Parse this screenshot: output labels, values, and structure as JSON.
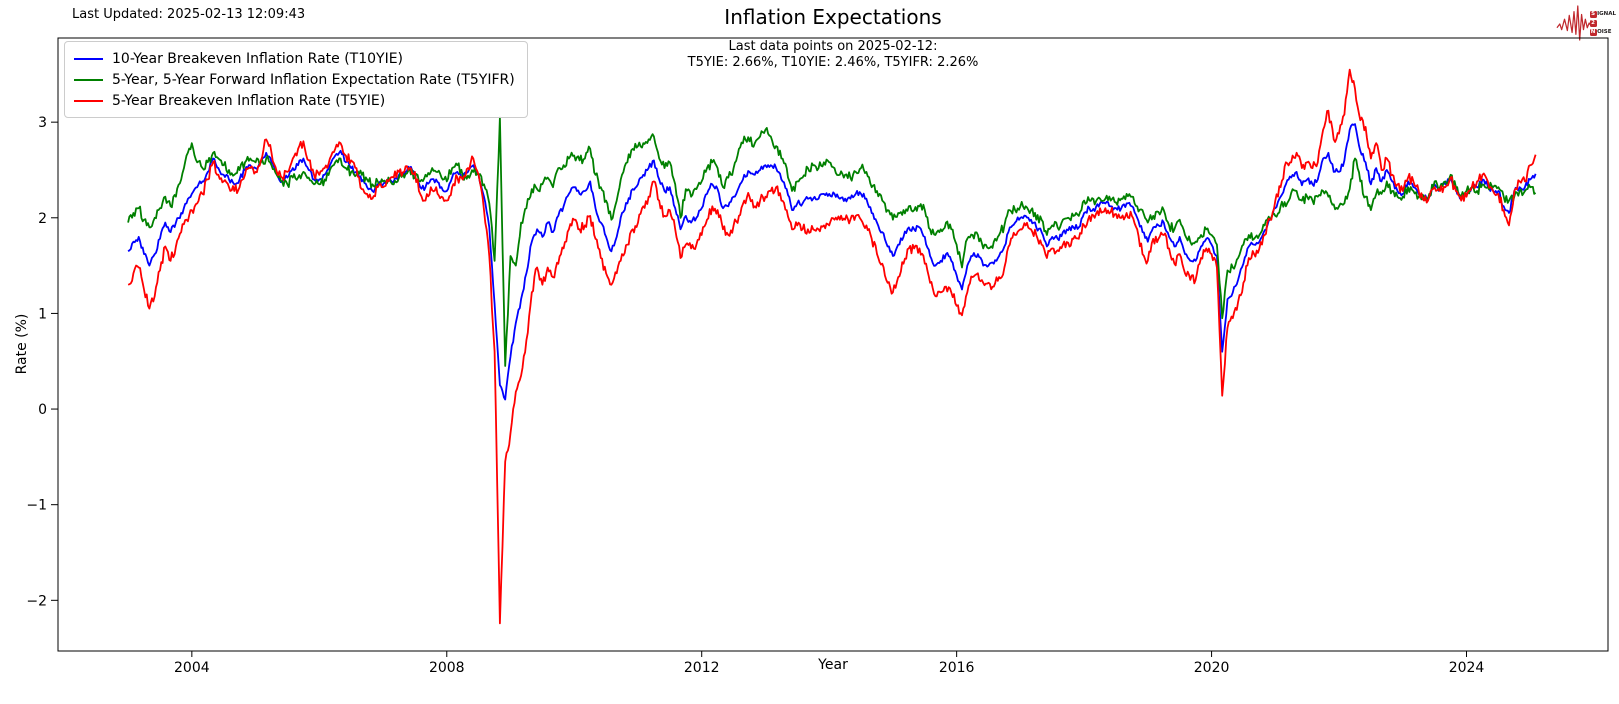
{
  "header": {
    "last_updated": "Last Updated: 2025-02-13 12:09:43",
    "title": "Inflation Expectations",
    "annotation_line1": "Last data points on 2025-02-12:",
    "annotation_line2": "T5YIE: 2.66%, T10YIE: 2.46%, T5YIFR: 2.26%"
  },
  "axes": {
    "xlabel": "Year",
    "ylabel": "Rate (%)"
  },
  "logo": {
    "signal_letter": "S",
    "signal_rest": "IGNAL",
    "two": "2",
    "noise_letter": "N",
    "noise_rest": "OISE",
    "accent_color": "#c0282d"
  },
  "chart_data": {
    "type": "line",
    "title": "Inflation Expectations",
    "xlabel": "Year",
    "ylabel": "Rate (%)",
    "xlim": [
      2001.9,
      2026.22
    ],
    "ylim": [
      -2.53,
      3.88
    ],
    "xticks": [
      2004,
      2008,
      2012,
      2016,
      2020,
      2024
    ],
    "yticks": [
      -2,
      -1,
      0,
      1,
      2,
      3
    ],
    "grid": false,
    "legend_position": "upper left",
    "sampling": "monthly",
    "x_start": 2003.0,
    "x_step": 0.0833333,
    "last_date": "2025-02-12",
    "last_points": {
      "T5YIE": 2.66,
      "T10YIE": 2.46,
      "T5YIFR": 2.26
    },
    "series": [
      {
        "id": "T10YIE",
        "name": "10-Year Breakeven Inflation Rate (T10YIE)",
        "color": "#0000ff",
        "values": [
          1.65,
          1.75,
          1.8,
          1.62,
          1.5,
          1.62,
          1.78,
          1.95,
          1.85,
          1.95,
          2.05,
          2.15,
          2.25,
          2.32,
          2.38,
          2.48,
          2.62,
          2.52,
          2.45,
          2.4,
          2.35,
          2.4,
          2.5,
          2.55,
          2.52,
          2.58,
          2.68,
          2.58,
          2.45,
          2.38,
          2.42,
          2.52,
          2.55,
          2.62,
          2.5,
          2.4,
          2.4,
          2.45,
          2.55,
          2.65,
          2.7,
          2.58,
          2.52,
          2.48,
          2.38,
          2.32,
          2.28,
          2.35,
          2.35,
          2.4,
          2.38,
          2.45,
          2.45,
          2.52,
          2.45,
          2.32,
          2.32,
          2.4,
          2.4,
          2.32,
          2.28,
          2.42,
          2.48,
          2.42,
          2.48,
          2.55,
          2.45,
          2.22,
          1.9,
          1.1,
          0.25,
          0.1,
          0.55,
          0.9,
          1.15,
          1.42,
          1.75,
          1.88,
          1.8,
          1.95,
          1.85,
          2.02,
          2.12,
          2.25,
          2.32,
          2.25,
          2.28,
          2.38,
          2.1,
          1.95,
          1.8,
          1.65,
          1.8,
          2.05,
          2.15,
          2.3,
          2.35,
          2.45,
          2.52,
          2.6,
          2.4,
          2.28,
          2.32,
          2.1,
          1.88,
          2.02,
          1.95,
          2.0,
          2.1,
          2.25,
          2.35,
          2.3,
          2.1,
          2.12,
          2.22,
          2.32,
          2.45,
          2.48,
          2.45,
          2.5,
          2.55,
          2.55,
          2.52,
          2.4,
          2.3,
          2.08,
          2.15,
          2.15,
          2.2,
          2.2,
          2.2,
          2.25,
          2.25,
          2.25,
          2.2,
          2.2,
          2.2,
          2.25,
          2.25,
          2.2,
          2.05,
          1.95,
          1.85,
          1.7,
          1.6,
          1.72,
          1.8,
          1.9,
          1.88,
          1.9,
          1.8,
          1.6,
          1.5,
          1.55,
          1.62,
          1.55,
          1.4,
          1.25,
          1.5,
          1.6,
          1.62,
          1.5,
          1.5,
          1.52,
          1.6,
          1.7,
          1.9,
          1.95,
          2.0,
          2.02,
          1.98,
          1.9,
          1.85,
          1.7,
          1.8,
          1.78,
          1.85,
          1.87,
          1.9,
          1.9,
          2.05,
          2.1,
          2.07,
          2.15,
          2.15,
          2.12,
          2.1,
          2.1,
          2.15,
          2.12,
          2.0,
          1.85,
          1.75,
          1.9,
          1.92,
          1.95,
          1.8,
          1.7,
          1.8,
          1.62,
          1.55,
          1.55,
          1.7,
          1.78,
          1.72,
          1.6,
          0.6,
          1.15,
          1.22,
          1.35,
          1.52,
          1.7,
          1.72,
          1.75,
          1.87,
          1.98,
          2.1,
          2.22,
          2.35,
          2.42,
          2.48,
          2.34,
          2.4,
          2.35,
          2.4,
          2.62,
          2.68,
          2.48,
          2.48,
          2.6,
          2.92,
          2.98,
          2.7,
          2.58,
          2.35,
          2.52,
          2.38,
          2.5,
          2.38,
          2.28,
          2.25,
          2.38,
          2.32,
          2.25,
          2.2,
          2.22,
          2.35,
          2.3,
          2.35,
          2.42,
          2.3,
          2.2,
          2.25,
          2.32,
          2.32,
          2.4,
          2.33,
          2.28,
          2.28,
          2.12,
          2.05,
          2.28,
          2.32,
          2.32,
          2.4,
          2.46
        ]
      },
      {
        "id": "T5YIFR",
        "name": "5-Year, 5-Year Forward Inflation Expectation Rate (T5YIFR)",
        "color": "#008000",
        "values": [
          1.95,
          2.05,
          2.1,
          1.98,
          1.9,
          2.0,
          2.1,
          2.22,
          2.12,
          2.22,
          2.4,
          2.65,
          2.78,
          2.58,
          2.52,
          2.58,
          2.68,
          2.62,
          2.55,
          2.5,
          2.45,
          2.5,
          2.58,
          2.62,
          2.58,
          2.58,
          2.62,
          2.55,
          2.45,
          2.38,
          2.35,
          2.42,
          2.42,
          2.48,
          2.42,
          2.35,
          2.35,
          2.4,
          2.5,
          2.58,
          2.62,
          2.52,
          2.48,
          2.45,
          2.45,
          2.4,
          2.35,
          2.38,
          2.38,
          2.42,
          2.35,
          2.42,
          2.42,
          2.52,
          2.42,
          2.38,
          2.45,
          2.48,
          2.48,
          2.42,
          2.38,
          2.52,
          2.55,
          2.44,
          2.44,
          2.48,
          2.45,
          2.35,
          2.15,
          1.55,
          3.05,
          0.45,
          1.6,
          1.5,
          1.95,
          2.1,
          2.3,
          2.3,
          2.35,
          2.42,
          2.32,
          2.52,
          2.55,
          2.62,
          2.65,
          2.6,
          2.62,
          2.72,
          2.45,
          2.32,
          2.18,
          1.98,
          2.18,
          2.45,
          2.58,
          2.72,
          2.75,
          2.78,
          2.82,
          2.85,
          2.62,
          2.52,
          2.58,
          2.35,
          2.0,
          2.3,
          2.22,
          2.3,
          2.38,
          2.52,
          2.58,
          2.52,
          2.32,
          2.42,
          2.52,
          2.72,
          2.85,
          2.8,
          2.78,
          2.85,
          2.92,
          2.85,
          2.75,
          2.62,
          2.52,
          2.28,
          2.38,
          2.42,
          2.52,
          2.55,
          2.52,
          2.58,
          2.58,
          2.52,
          2.45,
          2.45,
          2.42,
          2.48,
          2.52,
          2.48,
          2.32,
          2.28,
          2.18,
          2.08,
          1.98,
          2.05,
          2.08,
          2.12,
          2.08,
          2.12,
          2.08,
          1.88,
          1.82,
          1.88,
          1.95,
          1.88,
          1.72,
          1.48,
          1.78,
          1.82,
          1.82,
          1.68,
          1.68,
          1.75,
          1.82,
          1.92,
          2.08,
          2.08,
          2.12,
          2.12,
          2.08,
          1.98,
          1.98,
          1.82,
          1.92,
          1.9,
          1.98,
          2.0,
          2.02,
          2.02,
          2.18,
          2.18,
          2.14,
          2.2,
          2.2,
          2.18,
          2.16,
          2.2,
          2.25,
          2.22,
          2.12,
          2.08,
          1.95,
          2.02,
          2.06,
          2.08,
          1.92,
          1.88,
          1.98,
          1.82,
          1.75,
          1.75,
          1.82,
          1.88,
          1.82,
          1.72,
          0.95,
          1.45,
          1.48,
          1.58,
          1.72,
          1.82,
          1.78,
          1.82,
          1.92,
          1.98,
          2.02,
          2.12,
          2.12,
          2.26,
          2.28,
          2.18,
          2.22,
          2.18,
          2.22,
          2.28,
          2.22,
          2.14,
          2.12,
          2.15,
          2.3,
          2.62,
          2.38,
          2.22,
          2.08,
          2.25,
          2.25,
          2.38,
          2.28,
          2.22,
          2.22,
          2.32,
          2.28,
          2.22,
          2.22,
          2.25,
          2.38,
          2.32,
          2.38,
          2.45,
          2.32,
          2.22,
          2.28,
          2.32,
          2.28,
          2.35,
          2.32,
          2.32,
          2.32,
          2.22,
          2.18,
          2.22,
          2.28,
          2.28,
          2.32,
          2.26
        ]
      },
      {
        "id": "T5YIE",
        "name": "5-Year Breakeven Inflation Rate (T5YIE)",
        "color": "#ff0000",
        "values": [
          1.3,
          1.42,
          1.48,
          1.25,
          1.05,
          1.18,
          1.45,
          1.7,
          1.55,
          1.7,
          1.85,
          1.98,
          2.08,
          2.15,
          2.25,
          2.4,
          2.58,
          2.45,
          2.38,
          2.32,
          2.28,
          2.32,
          2.45,
          2.52,
          2.48,
          2.6,
          2.82,
          2.68,
          2.48,
          2.42,
          2.48,
          2.62,
          2.72,
          2.8,
          2.6,
          2.45,
          2.45,
          2.52,
          2.62,
          2.72,
          2.78,
          2.65,
          2.6,
          2.52,
          2.3,
          2.25,
          2.2,
          2.32,
          2.32,
          2.38,
          2.42,
          2.48,
          2.48,
          2.52,
          2.48,
          2.25,
          2.18,
          2.32,
          2.32,
          2.22,
          2.18,
          2.32,
          2.42,
          2.4,
          2.52,
          2.62,
          2.45,
          2.08,
          1.6,
          0.6,
          -2.24,
          -0.55,
          -0.25,
          0.18,
          0.35,
          0.72,
          1.22,
          1.48,
          1.3,
          1.48,
          1.38,
          1.52,
          1.68,
          1.88,
          1.98,
          1.88,
          1.92,
          2.02,
          1.78,
          1.58,
          1.42,
          1.3,
          1.42,
          1.62,
          1.72,
          1.88,
          1.95,
          2.12,
          2.22,
          2.38,
          2.18,
          2.02,
          2.08,
          1.88,
          1.58,
          1.72,
          1.68,
          1.72,
          1.82,
          1.98,
          2.12,
          2.08,
          1.88,
          1.82,
          1.92,
          2.02,
          2.18,
          2.22,
          2.12,
          2.18,
          2.22,
          2.28,
          2.32,
          2.18,
          2.08,
          1.88,
          1.92,
          1.88,
          1.88,
          1.88,
          1.88,
          1.92,
          1.92,
          1.98,
          1.98,
          1.98,
          1.98,
          2.02,
          1.98,
          1.92,
          1.78,
          1.62,
          1.52,
          1.32,
          1.22,
          1.38,
          1.52,
          1.68,
          1.68,
          1.68,
          1.52,
          1.32,
          1.18,
          1.22,
          1.28,
          1.22,
          1.08,
          0.98,
          1.22,
          1.38,
          1.42,
          1.32,
          1.32,
          1.28,
          1.38,
          1.48,
          1.72,
          1.82,
          1.88,
          1.92,
          1.88,
          1.82,
          1.72,
          1.58,
          1.68,
          1.66,
          1.72,
          1.74,
          1.78,
          1.78,
          1.92,
          2.02,
          2.0,
          2.1,
          2.1,
          2.06,
          2.04,
          2.0,
          2.05,
          2.02,
          1.88,
          1.62,
          1.55,
          1.78,
          1.78,
          1.82,
          1.68,
          1.52,
          1.62,
          1.42,
          1.35,
          1.35,
          1.58,
          1.68,
          1.62,
          1.48,
          0.14,
          0.85,
          0.95,
          1.12,
          1.32,
          1.58,
          1.62,
          1.68,
          1.82,
          1.98,
          2.18,
          2.32,
          2.58,
          2.58,
          2.68,
          2.52,
          2.58,
          2.52,
          2.58,
          2.92,
          3.12,
          2.82,
          2.88,
          3.08,
          3.55,
          3.35,
          3.02,
          2.95,
          2.62,
          2.78,
          2.5,
          2.62,
          2.45,
          2.35,
          2.28,
          2.42,
          2.38,
          2.28,
          2.18,
          2.22,
          2.32,
          2.28,
          2.32,
          2.42,
          2.28,
          2.18,
          2.22,
          2.32,
          2.38,
          2.45,
          2.38,
          2.28,
          2.25,
          2.08,
          1.92,
          2.28,
          2.38,
          2.38,
          2.55,
          2.66
        ]
      }
    ]
  }
}
